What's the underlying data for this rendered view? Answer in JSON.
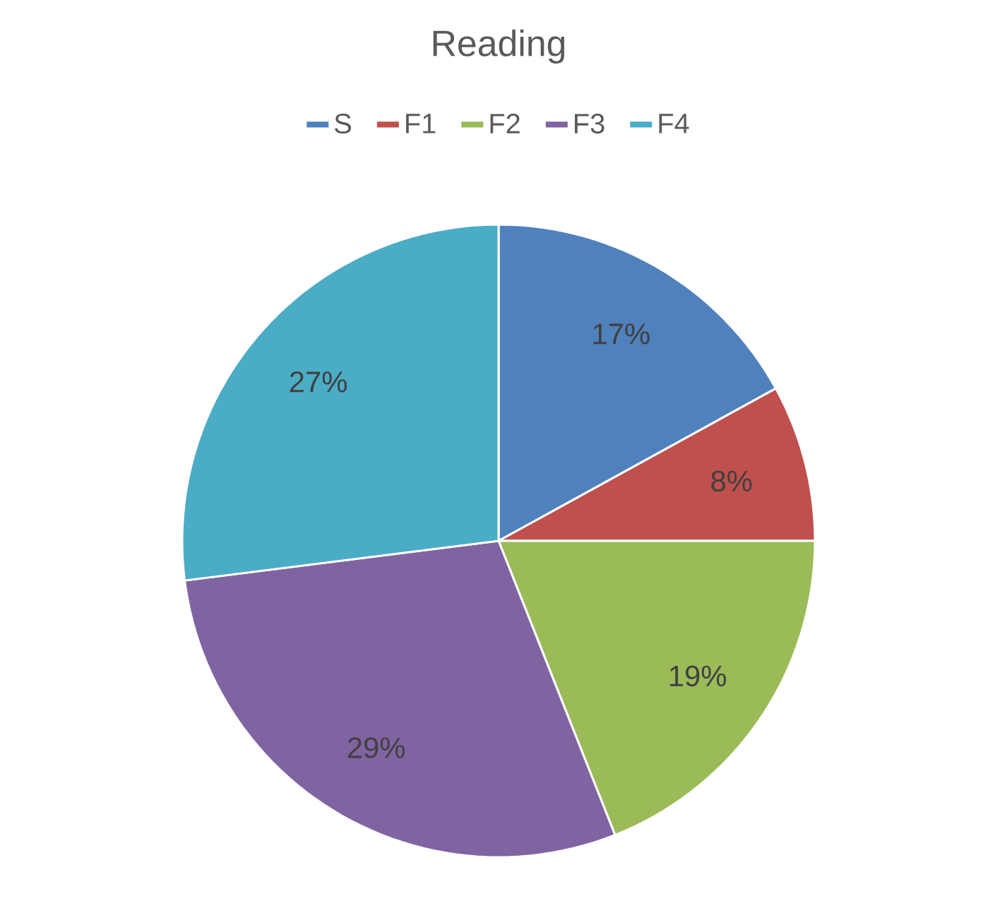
{
  "chart_data": {
    "type": "pie",
    "title": "Reading",
    "categories": [
      "S",
      "F1",
      "F2",
      "F3",
      "F4"
    ],
    "values": [
      17,
      8,
      19,
      29,
      27
    ],
    "value_labels": [
      "17%",
      "8%",
      "19%",
      "29%",
      "27%"
    ],
    "colors": [
      "#4f81bd",
      "#c0504d",
      "#9bbb59",
      "#8064a2",
      "#4bacc6"
    ],
    "legend": "top"
  }
}
